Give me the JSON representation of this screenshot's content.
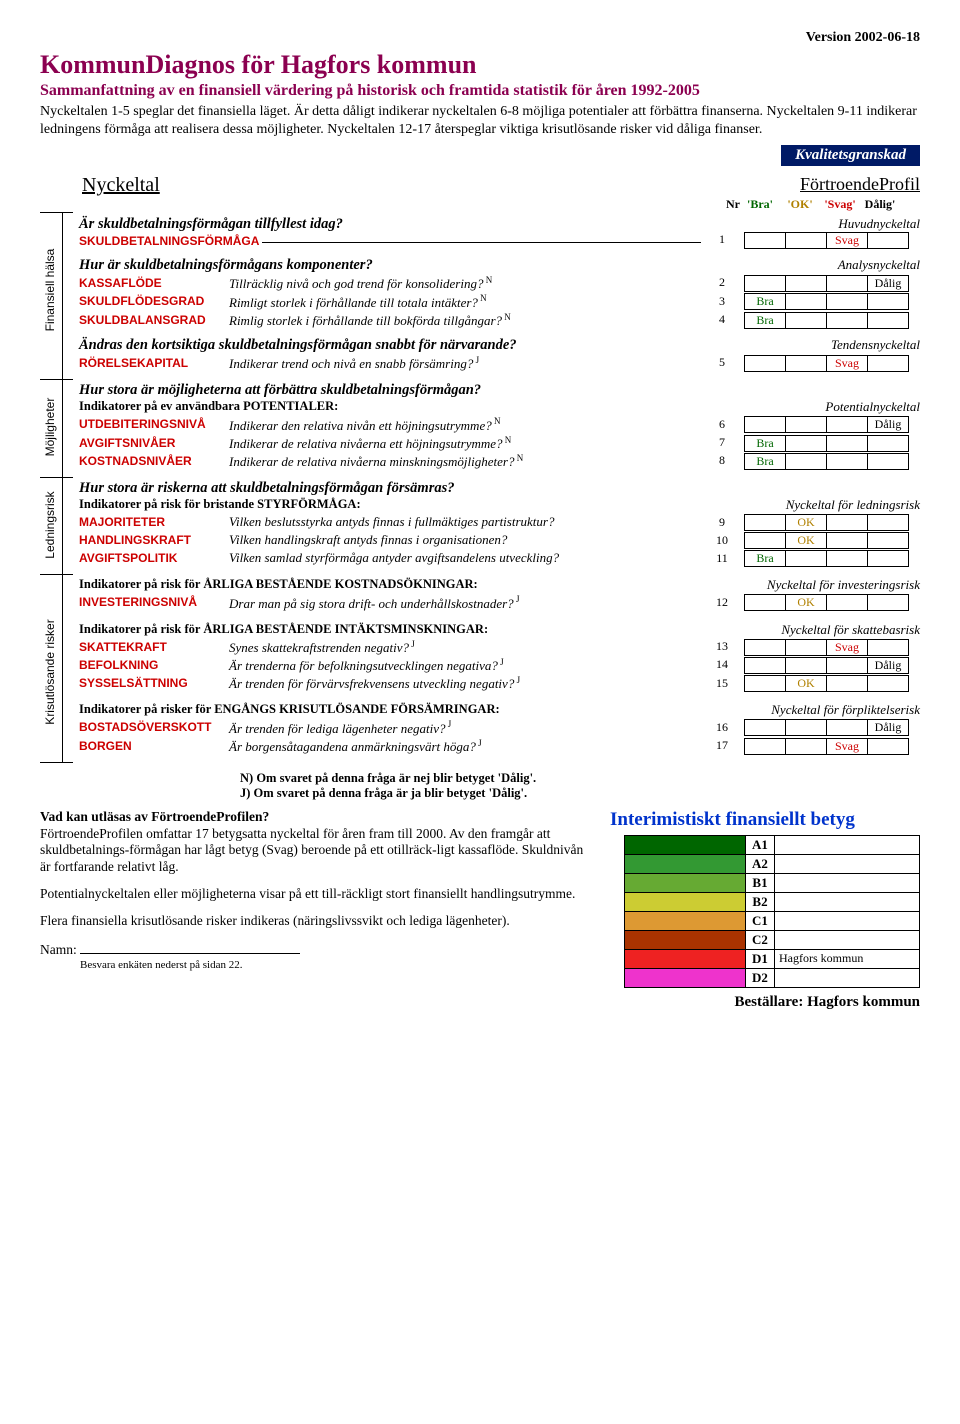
{
  "version": "Version 2002-06-18",
  "title": "KommunDiagnos för Hagfors kommun",
  "subtitle": "Sammanfattning av en finansiell värdering på historisk och framtida statistik för åren 1992-2005",
  "intro": "Nyckeltalen 1-5 speglar det finansiella läget. Är detta dåligt indikerar nyckeltalen 6-8 möjliga potentialer att förbättra finanserna. Nyckeltalen 9-11 indikerar ledningens förmåga att realisera dessa möjligheter. Nyckeltalen 12-17 återspeglar viktiga krisutlösande risker vid dåliga finanser.",
  "kval": "Kvalitetsgranskad",
  "nyckeltal": "Nyckeltal",
  "fp": "FörtroendeProfil",
  "header_nr": "Nr",
  "header_cols": [
    "'Bra'",
    "'OK'",
    "'Svag'",
    "Dålig'"
  ],
  "header_colors": [
    "#006600",
    "#b08000",
    "#cc0000",
    "#000000"
  ],
  "cat1": "Huvudnyckeltal",
  "cat2": "Analysnyckeltal",
  "cat3": "Tendensnyckeltal",
  "cat4": "Potentialnyckeltal",
  "cat5": "Nyckeltal för ledningsrisk",
  "cat6": "Nyckeltal för investeringsrisk",
  "cat7": "Nyckeltal för skattebasrisk",
  "cat8": "Nyckeltal för förpliktelserisk",
  "vlabels": [
    "Finansiell hälsa",
    "Möjligheter",
    "Ledningsrisk",
    "Krisutlösande risker"
  ],
  "q1": "Är skuldbetalningsförmågan tillfyllest idag?",
  "t1": "SKULDBETALNINGSFÖRMÅGA",
  "q2": "Hur är skuldbetalningsförmågans komponenter?",
  "rows2": [
    {
      "t": "KASSAFLÖDE",
      "d": "Tillräcklig nivå och god trend för konsolidering?",
      "sup": "N",
      "nr": 2,
      "col": 3,
      "val": "Dålig"
    },
    {
      "t": "SKULDFLÖDESGRAD",
      "d": "Rimligt storlek i förhållande till totala intäkter?",
      "sup": "N",
      "nr": 3,
      "col": 0,
      "val": "Bra"
    },
    {
      "t": "SKULDBALANSGRAD",
      "d": "Rimlig storlek i förhållande till bokförda tillgångar?",
      "sup": "N",
      "nr": 4,
      "col": 0,
      "val": "Bra"
    }
  ],
  "q3": "Ändras den kortsiktiga skuldbetalningsförmågan snabbt för närvarande?",
  "rows3": [
    {
      "t": "RÖRELSEKAPITAL",
      "d": "Indikerar trend och nivå en snabb försämring?",
      "sup": "J",
      "nr": 5,
      "col": 2,
      "val": "Svag"
    }
  ],
  "q4": "Hur stora är möjligheterna att förbättra skuldbetalningsförmågan?",
  "sub4": "Indikatorer på ev användbara POTENTIALER:",
  "rows4": [
    {
      "t": "UTDEBITERINGSNIVÅ",
      "d": "Indikerar den relativa nivån ett höjningsutrymme?",
      "sup": "N",
      "nr": 6,
      "col": 3,
      "val": "Dålig"
    },
    {
      "t": "AVGIFTSNIVÅER",
      "d": "Indikerar de relativa nivåerna ett höjningsutrymme?",
      "sup": "N",
      "nr": 7,
      "col": 0,
      "val": "Bra"
    },
    {
      "t": "KOSTNADSNIVÅER",
      "d": "Indikerar de relativa nivåerna minskningsmöjligheter?",
      "sup": "N",
      "nr": 8,
      "col": 0,
      "val": "Bra"
    }
  ],
  "q5": "Hur stora är riskerna att skuldbetalningsförmågan försämras?",
  "sub5": "Indikatorer på risk för bristande STYRFÖRMÅGA:",
  "rows5": [
    {
      "t": "MAJORITETER",
      "d": "Vilken beslutsstyrka antyds finnas i fullmäktiges partistruktur?",
      "sup": "",
      "nr": 9,
      "col": 1,
      "val": "OK"
    },
    {
      "t": "HANDLINGSKRAFT",
      "d": "Vilken handlingskraft antyds finnas i organisationen?",
      "sup": "",
      "nr": 10,
      "col": 1,
      "val": "OK"
    },
    {
      "t": "AVGIFTSPOLITIK",
      "d": "Vilken samlad styrförmåga antyder avgiftsandelens utveckling?",
      "sup": "",
      "nr": 11,
      "col": 0,
      "val": "Bra"
    }
  ],
  "sub6": "Indikatorer på risk för ÅRLIGA BESTÅENDE KOSTNADSÖKNINGAR:",
  "rows6": [
    {
      "t": "INVESTERINGSNIVÅ",
      "d": "Drar man på sig stora drift- och underhållskostnader?",
      "sup": "J",
      "nr": 12,
      "col": 1,
      "val": "OK"
    }
  ],
  "sub7": "Indikatorer på risk för ÅRLIGA BESTÅENDE INTÄKTSMINSKNINGAR:",
  "rows7": [
    {
      "t": "SKATTEKRAFT",
      "d": "Synes skattekraftstrenden negativ?",
      "sup": "J",
      "nr": 13,
      "col": 2,
      "val": "Svag"
    },
    {
      "t": "BEFOLKNING",
      "d": "Är trenderna för befolkningsutvecklingen negativa?",
      "sup": "J",
      "nr": 14,
      "col": 3,
      "val": "Dålig"
    },
    {
      "t": "SYSSELSÄTTNING",
      "d": "Är trenden för förvärvsfrekvensens utveckling negativ?",
      "sup": "J",
      "nr": 15,
      "col": 1,
      "val": "OK"
    }
  ],
  "sub8": "Indikatorer på risker för ENGÅNGS KRISUTLÖSANDE FÖRSÄMRINGAR:",
  "rows8": [
    {
      "t": "BOSTADSÖVERSKOTT",
      "d": "Är trenden för lediga lägenheter negativ?",
      "sup": "J",
      "nr": 16,
      "col": 3,
      "val": "Dålig"
    },
    {
      "t": "BORGEN",
      "d": "Är borgensåtagandena anmärkningsvärt höga?",
      "sup": "J",
      "nr": 17,
      "col": 2,
      "val": "Svag"
    }
  ],
  "row1": {
    "nr": 1,
    "col": 2,
    "val": "Svag"
  },
  "note1": "N) Om svaret på denna fråga är nej blir betyget 'Dålig'.",
  "note2": "J) Om svaret på denna fråga är ja blir betyget 'Dålig'.",
  "bl_title": "Vad kan utläsas av FörtroendeProfilen?",
  "bl_p1": "FörtroendeProfilen omfattar 17 betygsatta nyckeltal för åren fram till 2000. Av den framgår att skuldbetalnings-förmågan har lågt betyg (Svag) beroende på ett otillräck-ligt kassaflöde. Skuldnivån är fortfarande relativt låg.",
  "bl_p2": "Potentialnyckeltalen eller möjligheterna visar på ett till-räckligt stort finansiellt handlingsutrymme.",
  "bl_p3": "Flera finansiella krisutlösande risker indikeras (näringslivssvikt och lediga lägenheter).",
  "interim": "Interimistiskt finansiellt betyg",
  "grades": [
    {
      "lbl": "A1",
      "color": "#006600",
      "txt": ""
    },
    {
      "lbl": "A2",
      "color": "#339933",
      "txt": ""
    },
    {
      "lbl": "B1",
      "color": "#66aa33",
      "txt": ""
    },
    {
      "lbl": "B2",
      "color": "#cccc33",
      "txt": ""
    },
    {
      "lbl": "C1",
      "color": "#dd9933",
      "txt": ""
    },
    {
      "lbl": "C2",
      "color": "#aa3300",
      "txt": ""
    },
    {
      "lbl": "D1",
      "color": "#ee2222",
      "txt": "Hagfors kommun"
    },
    {
      "lbl": "D2",
      "color": "#ee33cc",
      "txt": ""
    }
  ],
  "namn": "Namn:",
  "namn_sub": "Besvara enkäten nederst på sidan 22.",
  "order": "Beställare: Hagfors kommun",
  "rating_colors": [
    "#006600",
    "#b08000",
    "#cc0000",
    "#000000"
  ]
}
